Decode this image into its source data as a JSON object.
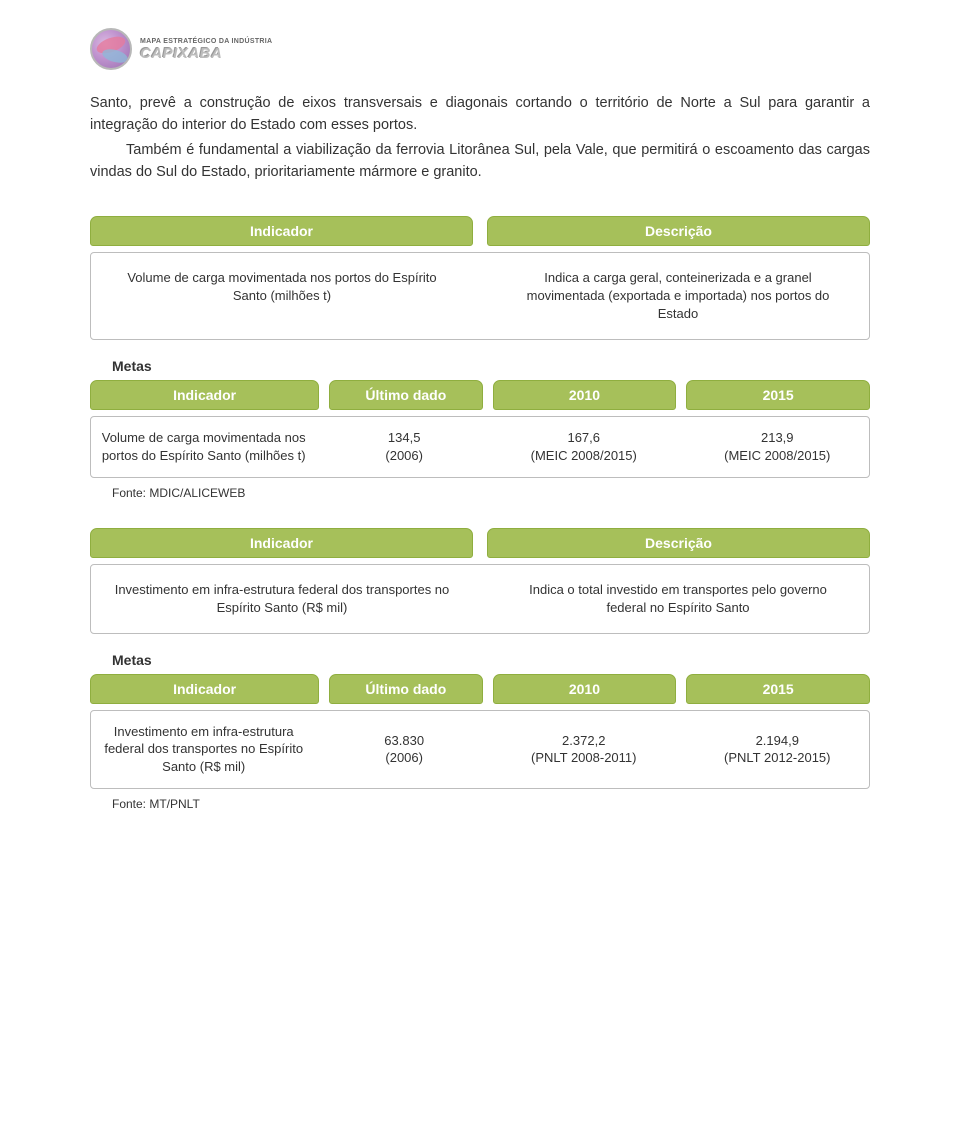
{
  "logo": {
    "line1": "MAPA ESTRATÉGICO DA INDÚSTRIA",
    "line2": "CAPIXABA"
  },
  "paragraphs": {
    "p1": "Santo, prevê a construção de eixos transversais e diagonais cortando o território de Norte a Sul para garantir a integração do interior do Estado com esses portos.",
    "p2": "Também é fundamental a viabilização da ferrovia Litorânea Sul, pela Vale, que permitirá o escoamento das cargas vindas do Sul do Estado, prioritariamente mármore e granito."
  },
  "labels": {
    "indicador": "Indicador",
    "descricao": "Descrição",
    "ultimo_dado": "Último dado",
    "y2010": "2010",
    "y2015": "2015",
    "metas": "Metas"
  },
  "block1": {
    "indicator": "Volume de carga movimentada nos portos do Espírito Santo (milhões t)",
    "description": "Indica a carga geral, conteinerizada e a granel movimentada (exportada e importada) nos portos do Estado",
    "metas": {
      "indicator": "Volume de carga movimentada nos portos do Espírito Santo (milhões t)",
      "ultimo_line1": "134,5",
      "ultimo_line2": "(2006)",
      "y2010_line1": "167,6",
      "y2010_line2": "(MEIC 2008/2015)",
      "y2015_line1": "213,9",
      "y2015_line2": "(MEIC 2008/2015)"
    },
    "fonte": "Fonte: MDIC/ALICEWEB"
  },
  "block2": {
    "indicator": "Investimento em infra-estrutura federal dos transportes no Espírito Santo (R$ mil)",
    "description": "Indica o total investido em transportes pelo governo federal no Espírito Santo",
    "metas": {
      "indicator": "Investimento em infra-estrutura federal dos transportes no Espírito Santo  (R$ mil)",
      "ultimo_line1": "63.830",
      "ultimo_line2": "(2006)",
      "y2010_line1": "2.372,2",
      "y2010_line2": "(PNLT 2008-2011)",
      "y2015_line1": "2.194,9",
      "y2015_line2": "(PNLT 2012-2015)"
    },
    "fonte": "Fonte: MT/PNLT"
  },
  "colors": {
    "header_bg": "#a6c05a",
    "header_border": "#8fae3f",
    "header_text": "#ffffff",
    "row_border": "#bdbdbd",
    "body_text": "#333333",
    "page_bg": "#ffffff"
  },
  "fonts": {
    "body_size_pt": 11,
    "header_size_pt": 11,
    "cell_size_pt": 10,
    "fonte_size_pt": 9
  }
}
